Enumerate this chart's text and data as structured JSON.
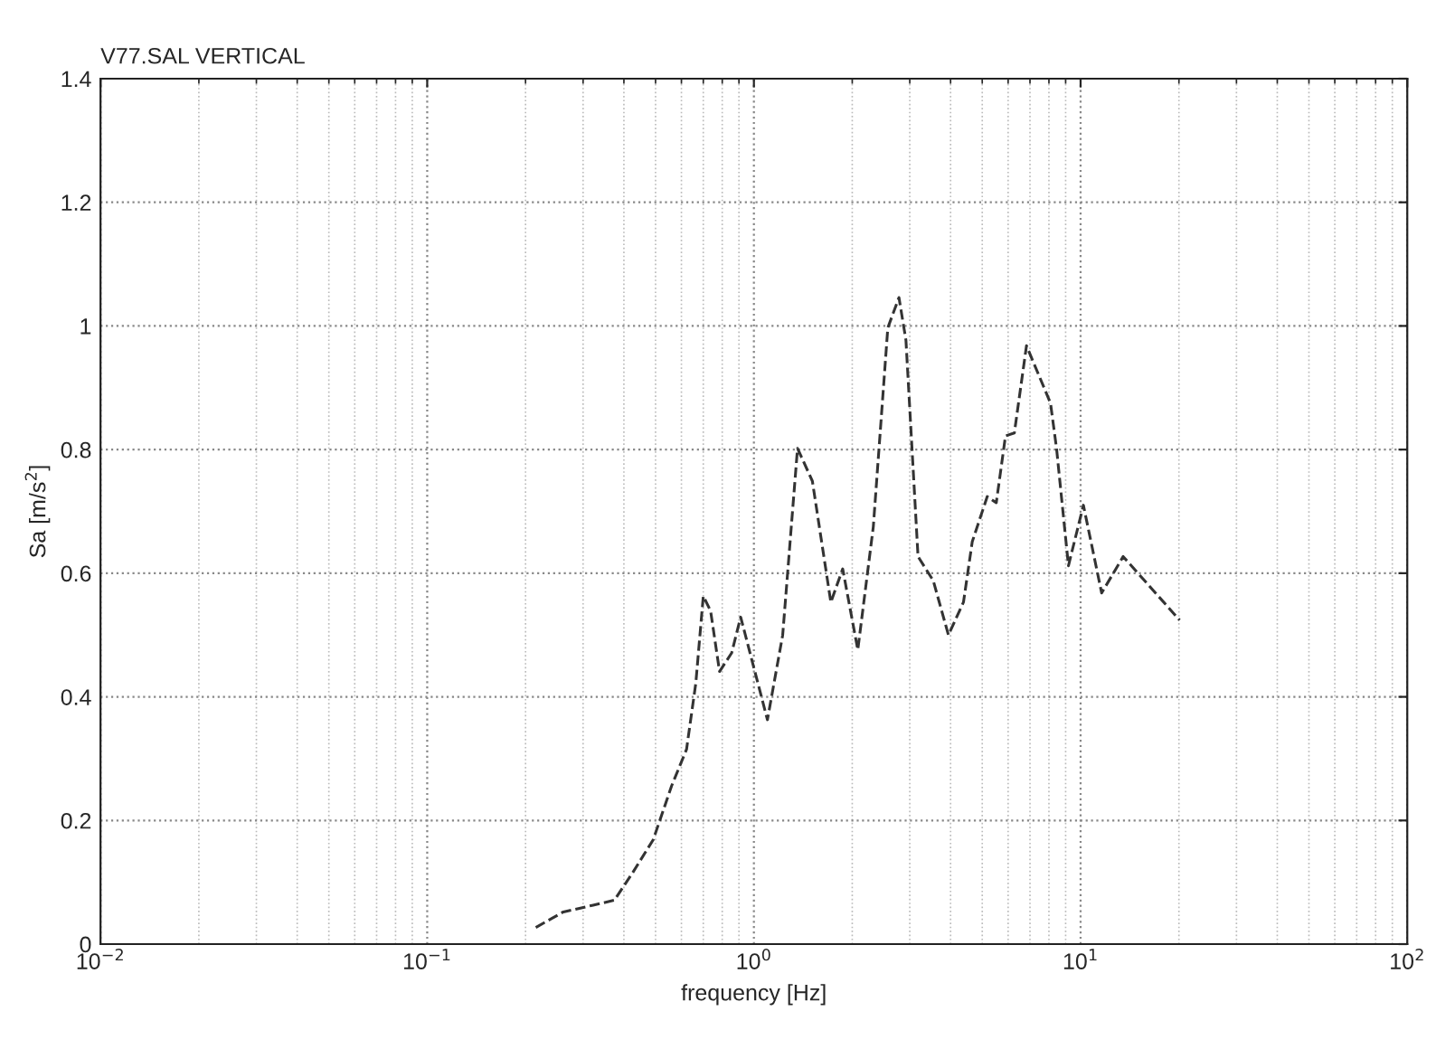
{
  "chart_data": {
    "type": "line",
    "title": "V77.SAL VERTICAL",
    "xlabel": "frequency [Hz]",
    "ylabel": "Sa [m/s$^{2}$]",
    "log": "x",
    "grid": true,
    "line_style": "dashed",
    "marker": "none",
    "xlim": [
      0.01,
      100
    ],
    "ylim": [
      0,
      1.4
    ],
    "xticks": [
      {
        "value": 0.01,
        "label": "10$^{−2}$"
      },
      {
        "value": 0.1,
        "label": "10$^{−1}$"
      },
      {
        "value": 1,
        "label": "10$^{0}$"
      },
      {
        "value": 10,
        "label": "10$^{1}$"
      },
      {
        "value": 100,
        "label": "10$^{2}$"
      }
    ],
    "yticks": [
      0,
      0.2,
      0.4,
      0.6,
      0.8,
      1,
      1.2,
      1.4
    ],
    "series": [
      {
        "color": "#333333",
        "x": [
          0.215,
          0.261,
          0.322,
          0.374,
          0.425,
          0.492,
          0.56,
          0.622,
          0.664,
          0.7,
          0.737,
          0.785,
          0.855,
          0.911,
          1.1,
          1.225,
          1.36,
          1.51,
          1.72,
          1.87,
          2.08,
          2.32,
          2.57,
          2.78,
          2.92,
          3.18,
          3.54,
          3.94,
          4.38,
          4.66,
          5.18,
          5.52,
          5.89,
          6.27,
          6.83,
          8.09,
          8.44,
          9.18,
          10.2,
          11.6,
          13.5,
          20.1
        ],
        "values": [
          0.027,
          0.052,
          0.063,
          0.071,
          0.115,
          0.169,
          0.256,
          0.315,
          0.422,
          0.563,
          0.539,
          0.441,
          0.471,
          0.529,
          0.363,
          0.5,
          0.802,
          0.749,
          0.553,
          0.607,
          0.476,
          0.675,
          0.997,
          1.046,
          0.977,
          0.627,
          0.588,
          0.5,
          0.553,
          0.651,
          0.724,
          0.714,
          0.822,
          0.827,
          0.968,
          0.875,
          0.802,
          0.612,
          0.71,
          0.568,
          0.627,
          0.524
        ]
      }
    ]
  }
}
